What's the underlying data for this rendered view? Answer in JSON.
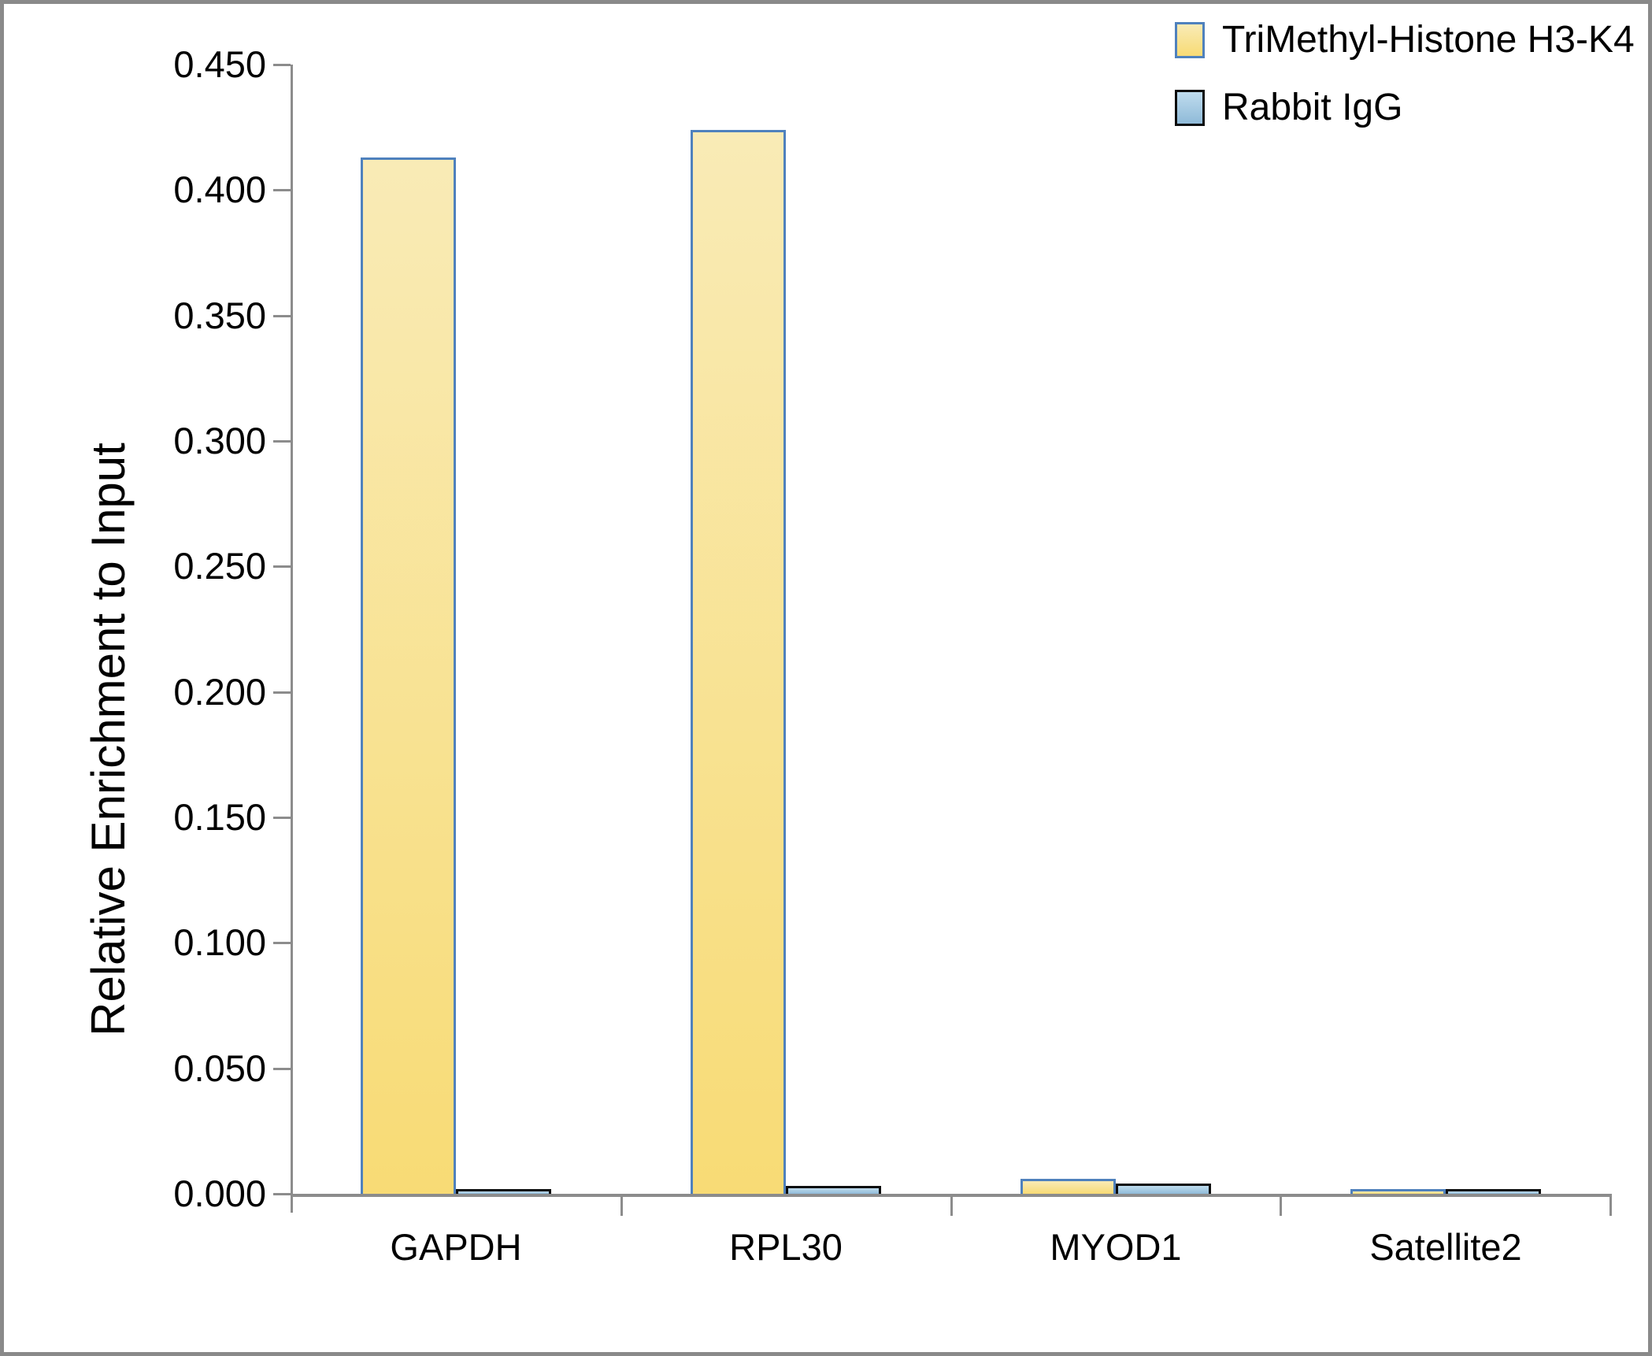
{
  "chart_data": {
    "type": "bar",
    "title": "",
    "xlabel": "",
    "ylabel": "Relative Enrichment to Input",
    "ylim": [
      0,
      0.45
    ],
    "ytick_step": 0.05,
    "yticks": [
      "0.450",
      "0.400",
      "0.350",
      "0.300",
      "0.250",
      "0.200",
      "0.150",
      "0.100",
      "0.050",
      "0.000"
    ],
    "categories": [
      "GAPDH",
      "RPL30",
      "MYOD1",
      "Satellite2"
    ],
    "series": [
      {
        "name": "TriMethyl-Histone H3-K4",
        "values": [
          0.413,
          0.424,
          0.006,
          0.002
        ],
        "fill_top": "#f9ebb6",
        "fill_bottom": "#f8db75",
        "border": "#4f81bd"
      },
      {
        "name": "Rabbit IgG",
        "values": [
          0.002,
          0.003,
          0.004,
          0.002
        ],
        "fill_top": "#bfdcee",
        "fill_bottom": "#8fbad8",
        "border": "#0d0d0d"
      }
    ],
    "legend_position": "top-right",
    "grid": "off",
    "axis_color": "#8c8c8c",
    "text_color": "#000000",
    "background": "#ffffff",
    "frame_color": "#8a8a8a"
  }
}
